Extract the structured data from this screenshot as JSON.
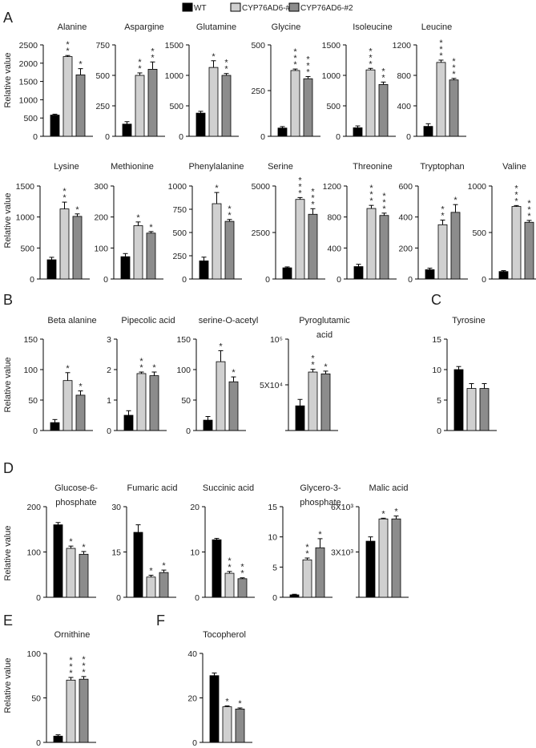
{
  "figure": {
    "legend": [
      {
        "name": "WT",
        "color": "#000000"
      },
      {
        "name": "CYP76AD6-#1",
        "color": "#d0d0d0"
      },
      {
        "name": "CYP76AD6-#2",
        "color": "#8c8c8c"
      }
    ],
    "panel_letters": [
      "A",
      "B",
      "C",
      "D",
      "E",
      "F"
    ],
    "ylabel": "Relative value"
  },
  "chart_data": [
    {
      "type": "bar",
      "panel": "A",
      "title": "Alanine",
      "categories": [
        "WT",
        "CYP76AD6-#1",
        "CYP76AD6-#2"
      ],
      "values": [
        580,
        2180,
        1680
      ],
      "errors": [
        25,
        30,
        170
      ],
      "stars": [
        "",
        "**",
        "*"
      ],
      "ylim": [
        0,
        2500
      ],
      "yticks": [
        "0",
        "500",
        "1000",
        "1500",
        "2000",
        "2500"
      ]
    },
    {
      "type": "bar",
      "panel": "A",
      "title": "Aspargine",
      "categories": [
        "WT",
        "CYP76AD6-#1",
        "CYP76AD6-#2"
      ],
      "values": [
        100,
        500,
        550
      ],
      "errors": [
        20,
        20,
        60
      ],
      "stars": [
        "",
        "**",
        "**"
      ],
      "ylim": [
        0,
        750
      ],
      "yticks": [
        "0",
        "250",
        "500",
        "750"
      ]
    },
    {
      "type": "bar",
      "panel": "A",
      "title": "Glutamine",
      "categories": [
        "WT",
        "CYP76AD6-#1",
        "CYP76AD6-#2"
      ],
      "values": [
        380,
        1130,
        1000
      ],
      "errors": [
        30,
        110,
        30
      ],
      "stars": [
        "",
        "*",
        "**"
      ],
      "ylim": [
        0,
        1500
      ],
      "yticks": [
        "0",
        "500",
        "1000",
        "1500"
      ]
    },
    {
      "type": "bar",
      "panel": "A",
      "title": "Glycine",
      "categories": [
        "WT",
        "CYP76AD6-#1",
        "CYP76AD6-#2"
      ],
      "values": [
        45,
        360,
        315
      ],
      "errors": [
        8,
        8,
        12
      ],
      "stars": [
        "",
        "***",
        "***"
      ],
      "ylim": [
        0,
        500
      ],
      "yticks": [
        "0",
        "250",
        "500"
      ]
    },
    {
      "type": "bar",
      "panel": "A",
      "title": "Isoleucine",
      "categories": [
        "WT",
        "CYP76AD6-#1",
        "CYP76AD6-#2"
      ],
      "values": [
        140,
        1090,
        850
      ],
      "errors": [
        30,
        25,
        40
      ],
      "stars": [
        "",
        "***",
        "**"
      ],
      "ylim": [
        0,
        1500
      ],
      "yticks": [
        "0",
        "500",
        "1000",
        "1500"
      ]
    },
    {
      "type": "bar",
      "panel": "A",
      "title": "Leucine",
      "categories": [
        "WT",
        "CYP76AD6-#1",
        "CYP76AD6-#2"
      ],
      "values": [
        130,
        970,
        740
      ],
      "errors": [
        35,
        30,
        20
      ],
      "stars": [
        "",
        "***",
        "***"
      ],
      "ylim": [
        0,
        1200
      ],
      "yticks": [
        "0",
        "400",
        "800",
        "1200"
      ]
    },
    {
      "type": "bar",
      "panel": "A",
      "title": "Lysine",
      "categories": [
        "WT",
        "CYP76AD6-#1",
        "CYP76AD6-#2"
      ],
      "values": [
        310,
        1130,
        1010
      ],
      "errors": [
        40,
        110,
        40
      ],
      "stars": [
        "",
        "**",
        "*"
      ],
      "ylim": [
        0,
        1500
      ],
      "yticks": [
        "0",
        "500",
        "1000",
        "1500"
      ]
    },
    {
      "type": "bar",
      "panel": "A",
      "title": "Methionine",
      "categories": [
        "WT",
        "CYP76AD6-#1",
        "CYP76AD6-#2"
      ],
      "values": [
        72,
        172,
        148
      ],
      "errors": [
        10,
        12,
        5
      ],
      "stars": [
        "",
        "*",
        "*"
      ],
      "ylim": [
        0,
        300
      ],
      "yticks": [
        "0",
        "100",
        "200",
        "300"
      ]
    },
    {
      "type": "bar",
      "panel": "A",
      "title": "Phenylalanine",
      "categories": [
        "WT",
        "CYP76AD6-#1",
        "CYP76AD6-#2"
      ],
      "values": [
        195,
        810,
        620
      ],
      "errors": [
        40,
        120,
        20
      ],
      "stars": [
        "",
        "*",
        "**"
      ],
      "ylim": [
        0,
        1000
      ],
      "yticks": [
        "0",
        "250",
        "500",
        "750",
        "1000"
      ]
    },
    {
      "type": "bar",
      "panel": "A",
      "title": "Serine",
      "categories": [
        "WT",
        "CYP76AD6-#1",
        "CYP76AD6-#2"
      ],
      "values": [
        600,
        4280,
        3480
      ],
      "errors": [
        50,
        100,
        300
      ],
      "stars": [
        "",
        "***",
        "***"
      ],
      "ylim": [
        0,
        5000
      ],
      "yticks": [
        "0",
        "2500",
        "5000"
      ]
    },
    {
      "type": "bar",
      "panel": "A",
      "title": "Threonine",
      "categories": [
        "WT",
        "CYP76AD6-#1",
        "CYP76AD6-#2"
      ],
      "values": [
        160,
        910,
        820
      ],
      "errors": [
        30,
        40,
        30
      ],
      "stars": [
        "",
        "***",
        "***"
      ],
      "ylim": [
        0,
        1200
      ],
      "yticks": [
        "0",
        "400",
        "800",
        "1200"
      ]
    },
    {
      "type": "bar",
      "panel": "A",
      "title": "Tryptophan",
      "categories": [
        "WT",
        "CYP76AD6-#1",
        "CYP76AD6-#2"
      ],
      "values": [
        60,
        350,
        430
      ],
      "errors": [
        10,
        30,
        50
      ],
      "stars": [
        "",
        "**",
        "*"
      ],
      "ylim": [
        0,
        600
      ],
      "yticks": [
        "0",
        "200",
        "400",
        "600"
      ]
    },
    {
      "type": "bar",
      "panel": "A",
      "title": "Valine",
      "categories": [
        "WT",
        "CYP76AD6-#1",
        "CYP76AD6-#2"
      ],
      "values": [
        80,
        780,
        610
      ],
      "errors": [
        10,
        10,
        20
      ],
      "stars": [
        "",
        "***",
        "***"
      ],
      "ylim": [
        0,
        1000
      ],
      "yticks": [
        "0",
        "500",
        "1000"
      ]
    },
    {
      "type": "bar",
      "panel": "B",
      "title": "Beta alanine",
      "categories": [
        "WT",
        "CYP76AD6-#1",
        "CYP76AD6-#2"
      ],
      "values": [
        13,
        82,
        58
      ],
      "errors": [
        5,
        13,
        7
      ],
      "stars": [
        "",
        "*",
        "*"
      ],
      "ylim": [
        0,
        150
      ],
      "yticks": [
        "0",
        "50",
        "100",
        "150"
      ]
    },
    {
      "type": "bar",
      "panel": "B",
      "title": "Pipecolic acid",
      "categories": [
        "WT",
        "CYP76AD6-#1",
        "CYP76AD6-#2"
      ],
      "values": [
        0.5,
        1.87,
        1.8
      ],
      "errors": [
        0.15,
        0.05,
        0.12
      ],
      "stars": [
        "",
        "**",
        "*"
      ],
      "ylim": [
        0,
        3
      ],
      "yticks": [
        "0",
        "1",
        "2",
        "3"
      ]
    },
    {
      "type": "bar",
      "panel": "B",
      "title": "serine-O-acetyl",
      "categories": [
        "WT",
        "CYP76AD6-#1",
        "CYP76AD6-#2"
      ],
      "values": [
        17,
        113,
        80
      ],
      "errors": [
        6,
        18,
        8
      ],
      "stars": [
        "",
        "*",
        "*"
      ],
      "ylim": [
        0,
        150
      ],
      "yticks": [
        "0",
        "50",
        "100",
        "150"
      ]
    },
    {
      "type": "bar",
      "panel": "B",
      "title": "Pyroglutamic acid",
      "categories": [
        "WT",
        "CYP76AD6-#1",
        "CYP76AD6-#2"
      ],
      "values": [
        27000,
        64000,
        62000
      ],
      "errors": [
        7000,
        3000,
        3000
      ],
      "stars": [
        "",
        "**",
        "*"
      ],
      "ylim": [
        0,
        100000
      ],
      "yticks": [
        "",
        "5X10⁴",
        "10⁵"
      ]
    },
    {
      "type": "bar",
      "panel": "C",
      "title": "Tyrosine",
      "categories": [
        "WT",
        "CYP76AD6-#1",
        "CYP76AD6-#2"
      ],
      "values": [
        10,
        6.9,
        6.9
      ],
      "errors": [
        0.5,
        0.8,
        0.8
      ],
      "stars": [
        "",
        "",
        ""
      ],
      "ylim": [
        0,
        15
      ],
      "yticks": [
        "0",
        "5",
        "10",
        "15"
      ]
    },
    {
      "type": "bar",
      "panel": "D",
      "title": "Glucose-6-phosphate",
      "categories": [
        "WT",
        "CYP76AD6-#1",
        "CYP76AD6-#2"
      ],
      "values": [
        160,
        108,
        95
      ],
      "errors": [
        5,
        5,
        6
      ],
      "stars": [
        "",
        "*",
        "*"
      ],
      "ylim": [
        0,
        200
      ],
      "yticks": [
        "0",
        "100",
        "200"
      ]
    },
    {
      "type": "bar",
      "panel": "D",
      "title": "Fumaric acid",
      "categories": [
        "WT",
        "CYP76AD6-#1",
        "CYP76AD6-#2"
      ],
      "values": [
        21.5,
        6.7,
        8.2
      ],
      "errors": [
        2.5,
        0.6,
        0.8
      ],
      "stars": [
        "",
        "*",
        "*"
      ],
      "ylim": [
        0,
        30
      ],
      "yticks": [
        "0",
        "15",
        "30"
      ]
    },
    {
      "type": "bar",
      "panel": "D",
      "title": "Succinic acid",
      "categories": [
        "WT",
        "CYP76AD6-#1",
        "CYP76AD6-#2"
      ],
      "values": [
        12.7,
        5.3,
        4.1
      ],
      "errors": [
        0.3,
        0.4,
        0.2
      ],
      "stars": [
        "",
        "**",
        "**"
      ],
      "ylim": [
        0,
        20
      ],
      "yticks": [
        "0",
        "10",
        "20"
      ]
    },
    {
      "type": "bar",
      "panel": "D",
      "title": "Glycero-3-phosphate",
      "categories": [
        "WT",
        "CYP76AD6-#1",
        "CYP76AD6-#2"
      ],
      "values": [
        0.4,
        6.2,
        8.2
      ],
      "errors": [
        0.1,
        0.3,
        1.5
      ],
      "stars": [
        "",
        "**",
        "*"
      ],
      "ylim": [
        0,
        15
      ],
      "yticks": [
        "0",
        "5",
        "10",
        "15"
      ]
    },
    {
      "type": "bar",
      "panel": "D",
      "title": "Malic acid",
      "categories": [
        "WT",
        "CYP76AD6-#1",
        "CYP76AD6-#2"
      ],
      "values": [
        3900,
        5450,
        5450
      ],
      "errors": [
        300,
        50,
        200
      ],
      "stars": [
        "",
        "*",
        "*"
      ],
      "ylim": [
        0,
        6300
      ],
      "yticks": [
        "",
        "3X10³",
        "6X10³"
      ]
    },
    {
      "type": "bar",
      "panel": "E",
      "title": "Ornithine",
      "categories": [
        "WT",
        "CYP76AD6-#1",
        "CYP76AD6-#2"
      ],
      "values": [
        7,
        70,
        71
      ],
      "errors": [
        1.5,
        3,
        3
      ],
      "stars": [
        "",
        "***",
        "***"
      ],
      "ylim": [
        0,
        100
      ],
      "yticks": [
        "0",
        "50",
        "100"
      ]
    },
    {
      "type": "bar",
      "panel": "F",
      "title": "Tocopherol",
      "categories": [
        "WT",
        "CYP76AD6-#1",
        "CYP76AD6-#2"
      ],
      "values": [
        30,
        16,
        15
      ],
      "errors": [
        1.2,
        0.4,
        0.5
      ],
      "stars": [
        "",
        "*",
        "*"
      ],
      "ylim": [
        0,
        40
      ],
      "yticks": [
        "0",
        "20",
        "40"
      ]
    }
  ]
}
